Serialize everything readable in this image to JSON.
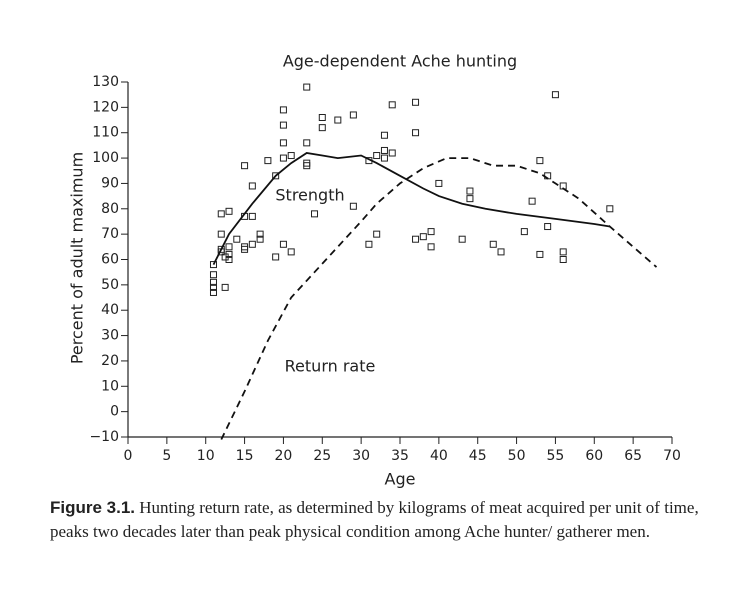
{
  "chart_data": {
    "type": "scatter",
    "title": "Age-dependent Ache hunting",
    "x_label": "Age",
    "y_label": "Percent of adult maximum",
    "xlim": [
      0,
      70
    ],
    "xticks": [
      0,
      5,
      10,
      15,
      20,
      25,
      30,
      35,
      40,
      45,
      50,
      55,
      60,
      65,
      70
    ],
    "ylim": [
      -10,
      130
    ],
    "yticks": [
      {
        "value": -10,
        "label": "−10"
      },
      0,
      10,
      20,
      30,
      40,
      50,
      60,
      70,
      80,
      90,
      100,
      110,
      120,
      130
    ],
    "grid": false,
    "series": [
      {
        "type": "scatter",
        "color": "#222222",
        "x": [
          11,
          11,
          11,
          11,
          11,
          12,
          12,
          12,
          12,
          12.5,
          12.5,
          13,
          13,
          13,
          13,
          14,
          15,
          15,
          15,
          15,
          16,
          16,
          16,
          17,
          17,
          18,
          19,
          19,
          20,
          20,
          20,
          20,
          20,
          21,
          21,
          23,
          23,
          23,
          23,
          24,
          25,
          25,
          27,
          29,
          29,
          31,
          31,
          32,
          32,
          33,
          33,
          33,
          34,
          34,
          37,
          37,
          37,
          38,
          39,
          39,
          40,
          43,
          44,
          44,
          47,
          48,
          51,
          52,
          53,
          53,
          54,
          54,
          55,
          56,
          56,
          56,
          62
        ],
        "values": [
          58,
          54,
          51,
          49,
          47,
          78,
          70,
          64,
          63,
          61,
          49,
          79,
          65,
          62,
          60,
          68,
          97,
          77,
          65,
          64,
          89,
          77,
          66,
          70,
          68,
          99,
          61,
          93,
          100,
          106,
          113,
          119,
          66,
          101,
          63,
          128,
          106,
          98,
          97,
          78,
          116,
          112,
          115,
          117,
          81,
          99,
          66,
          101,
          70,
          109,
          103,
          100,
          121,
          102,
          122,
          110,
          68,
          69,
          71,
          65,
          90,
          68,
          87,
          84,
          66,
          63,
          71,
          83,
          99,
          62,
          93,
          73,
          125,
          89,
          63,
          60,
          80
        ]
      },
      {
        "type": "line",
        "name": "Strength",
        "color": "#111111",
        "dash": false,
        "x": [
          11,
          13,
          16,
          19,
          21,
          23,
          25,
          27,
          30,
          32,
          35,
          38,
          40,
          43,
          46,
          50,
          55,
          60,
          62
        ],
        "values": [
          58,
          70,
          82,
          93,
          98,
          102,
          101,
          100,
          101,
          98,
          93,
          88,
          85,
          82,
          80,
          78,
          76,
          74,
          73
        ]
      },
      {
        "type": "line",
        "name": "Return rate",
        "color": "#111111",
        "dash": true,
        "x": [
          12,
          15,
          18,
          21,
          24,
          27,
          30,
          32,
          35,
          38,
          41,
          44,
          47,
          50,
          53,
          55,
          58,
          62,
          65,
          68
        ],
        "values": [
          -11,
          8,
          28,
          45,
          55,
          65,
          75,
          82,
          90,
          96,
          100,
          100,
          97,
          97,
          94,
          90,
          84,
          73,
          65,
          57
        ]
      }
    ],
    "caption_label": "Figure 3.1.",
    "caption": "Hunting return rate, as determined by kilograms of meat acquired per unit of time, peaks two decades later than peak physical condition among Ache hunter/ gatherer men."
  }
}
